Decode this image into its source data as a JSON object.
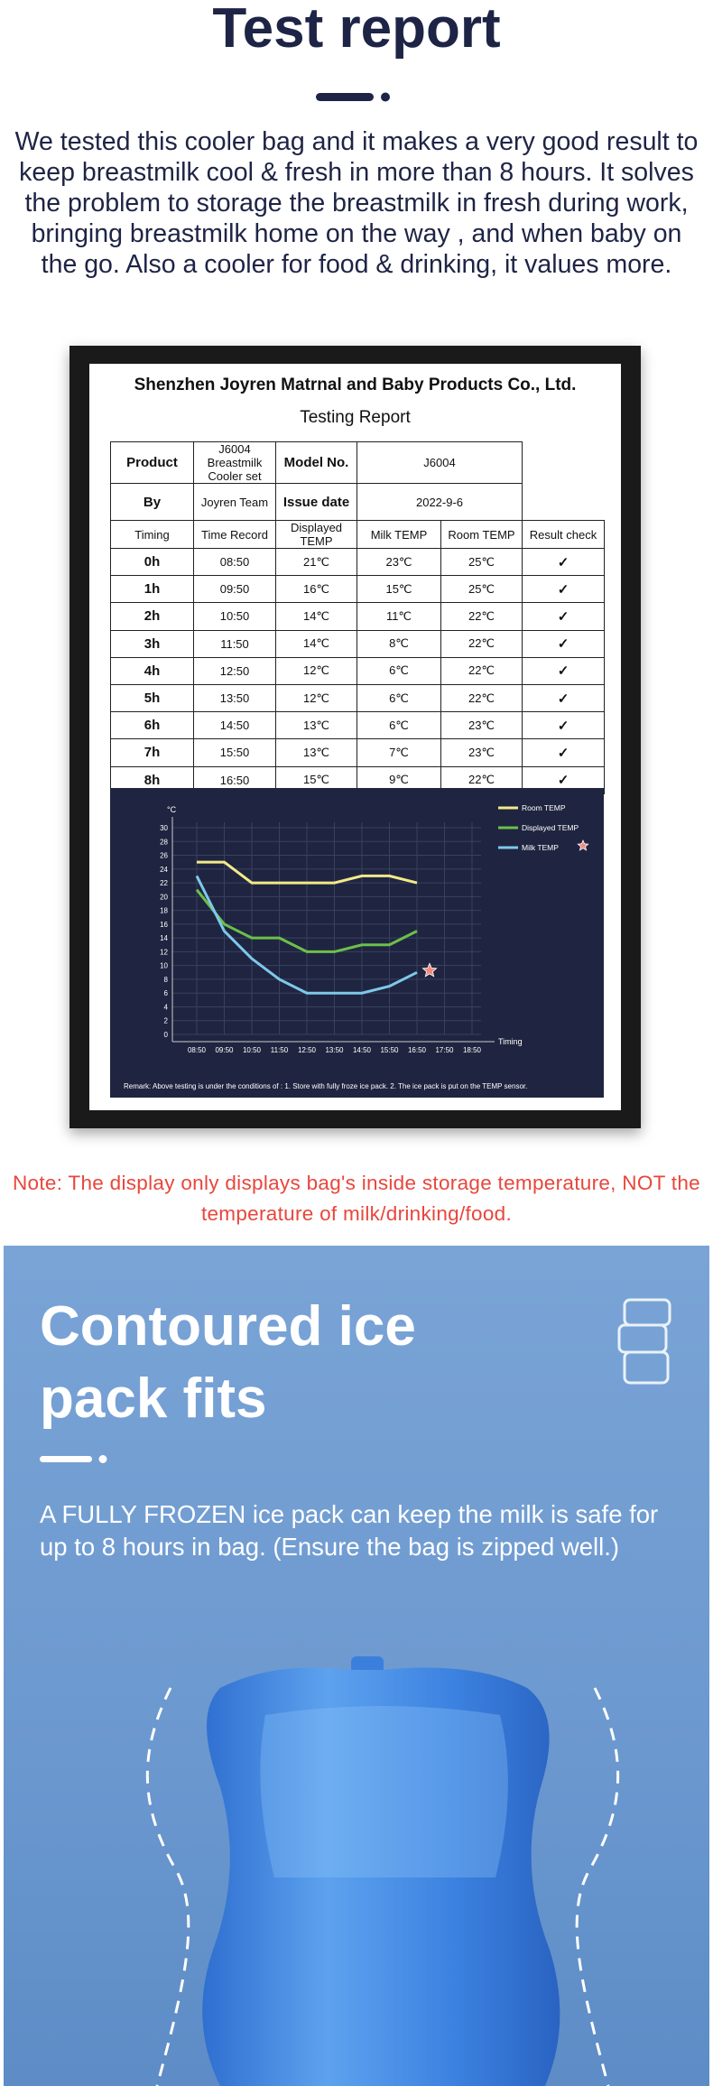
{
  "header": {
    "title": "Test report",
    "intro": "We tested this cooler bag and it makes a very good result to keep breastmilk cool & fresh in more than 8 hours. It solves the problem to storage the breastmilk in fresh during work, bringing breastmilk home on the way , and when baby on the go. Also a cooler for food & drinking, it values more."
  },
  "report": {
    "company": "Shenzhen Joyren Matrnal and Baby Products Co., Ltd.",
    "title": "Testing Report"
  },
  "table": {
    "info": [
      [
        "Product",
        "J6004 Breastmilk Cooler set",
        "Model No.",
        "J6004"
      ],
      [
        "By",
        "Joyren Team",
        "Issue date",
        "2022-9-6"
      ]
    ],
    "header": [
      "Timing",
      "Time Record",
      "Displayed TEMP",
      "Milk TEMP",
      "Room TEMP",
      "Result check"
    ],
    "rows": [
      [
        "0h",
        "08:50",
        "21℃",
        "23℃",
        "25℃",
        "✓"
      ],
      [
        "1h",
        "09:50",
        "16℃",
        "15℃",
        "25℃",
        "✓"
      ],
      [
        "2h",
        "10:50",
        "14℃",
        "11℃",
        "22℃",
        "✓"
      ],
      [
        "3h",
        "11:50",
        "14℃",
        "8℃",
        "22℃",
        "✓"
      ],
      [
        "4h",
        "12:50",
        "12℃",
        "6℃",
        "22℃",
        "✓"
      ],
      [
        "5h",
        "13:50",
        "12℃",
        "6℃",
        "22℃",
        "✓"
      ],
      [
        "6h",
        "14:50",
        "13℃",
        "6℃",
        "23℃",
        "✓"
      ],
      [
        "7h",
        "15:50",
        "13℃",
        "7℃",
        "23℃",
        "✓"
      ],
      [
        "8h",
        "16:50",
        "15℃",
        "9℃",
        "22℃",
        "✓"
      ]
    ]
  },
  "chart_data": {
    "type": "line",
    "y_label": "°C",
    "x_label": "Timing",
    "categories": [
      "08:50",
      "09:50",
      "10:50",
      "11:50",
      "12:50",
      "13:50",
      "14:50",
      "15:50",
      "16:50",
      "17:50",
      "18:50"
    ],
    "series": [
      {
        "name": "Room TEMP",
        "color": "#f3e98a",
        "values": [
          25,
          25,
          22,
          22,
          22,
          22,
          23,
          23,
          22,
          null,
          null
        ]
      },
      {
        "name": "Displayed TEMP",
        "color": "#6cc04a",
        "values": [
          21,
          16,
          14,
          14,
          12,
          12,
          13,
          13,
          15,
          null,
          null
        ]
      },
      {
        "name": "Milk TEMP",
        "color": "#7ec8ea",
        "values": [
          23,
          15,
          11,
          8,
          6,
          6,
          6,
          7,
          9,
          null,
          null
        ]
      }
    ],
    "ylim": [
      0,
      30
    ],
    "yticks": [
      0,
      2,
      4,
      6,
      8,
      10,
      12,
      14,
      16,
      18,
      20,
      22,
      24,
      26,
      28,
      30
    ],
    "grid": true,
    "remark": "Remark:  Above testing is under the conditions of :  1. Store with fully froze ice pack.  2. The ice pack is put on the TEMP sensor."
  },
  "note": "Note: The display only  displays bag's inside storage temperature, NOT the temperature of milk/drinking/food.",
  "feature": {
    "title": "Contoured ice pack fits",
    "text": "A FULLY FROZEN ice pack can keep the milk is safe for up to 8 hours in bag. (Ensure the bag is zipped well.)"
  }
}
